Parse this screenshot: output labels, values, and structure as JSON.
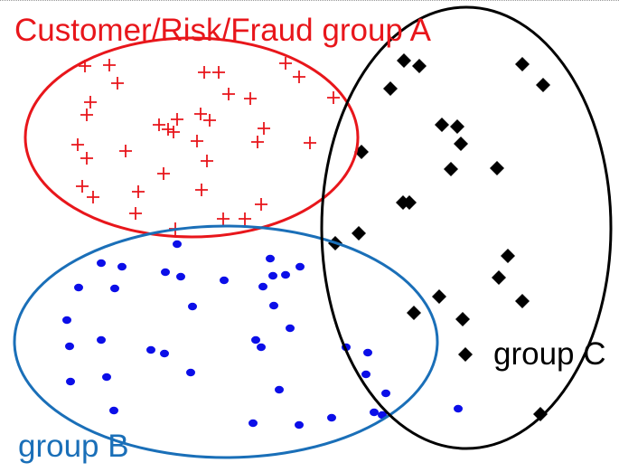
{
  "labels": {
    "group_a": "Customer/Risk/Fraud group A",
    "group_b": "group B",
    "group_c": "group C"
  },
  "colors": {
    "group_a": "#e8161b",
    "group_b": "#1a6fb8",
    "group_c": "#000000",
    "points_a": "#e8161b",
    "points_b": "#0b0ee8",
    "points_c": "#000000"
  },
  "markers": {
    "group_a": "plus",
    "group_b": "circle",
    "group_c": "diamond"
  }
}
